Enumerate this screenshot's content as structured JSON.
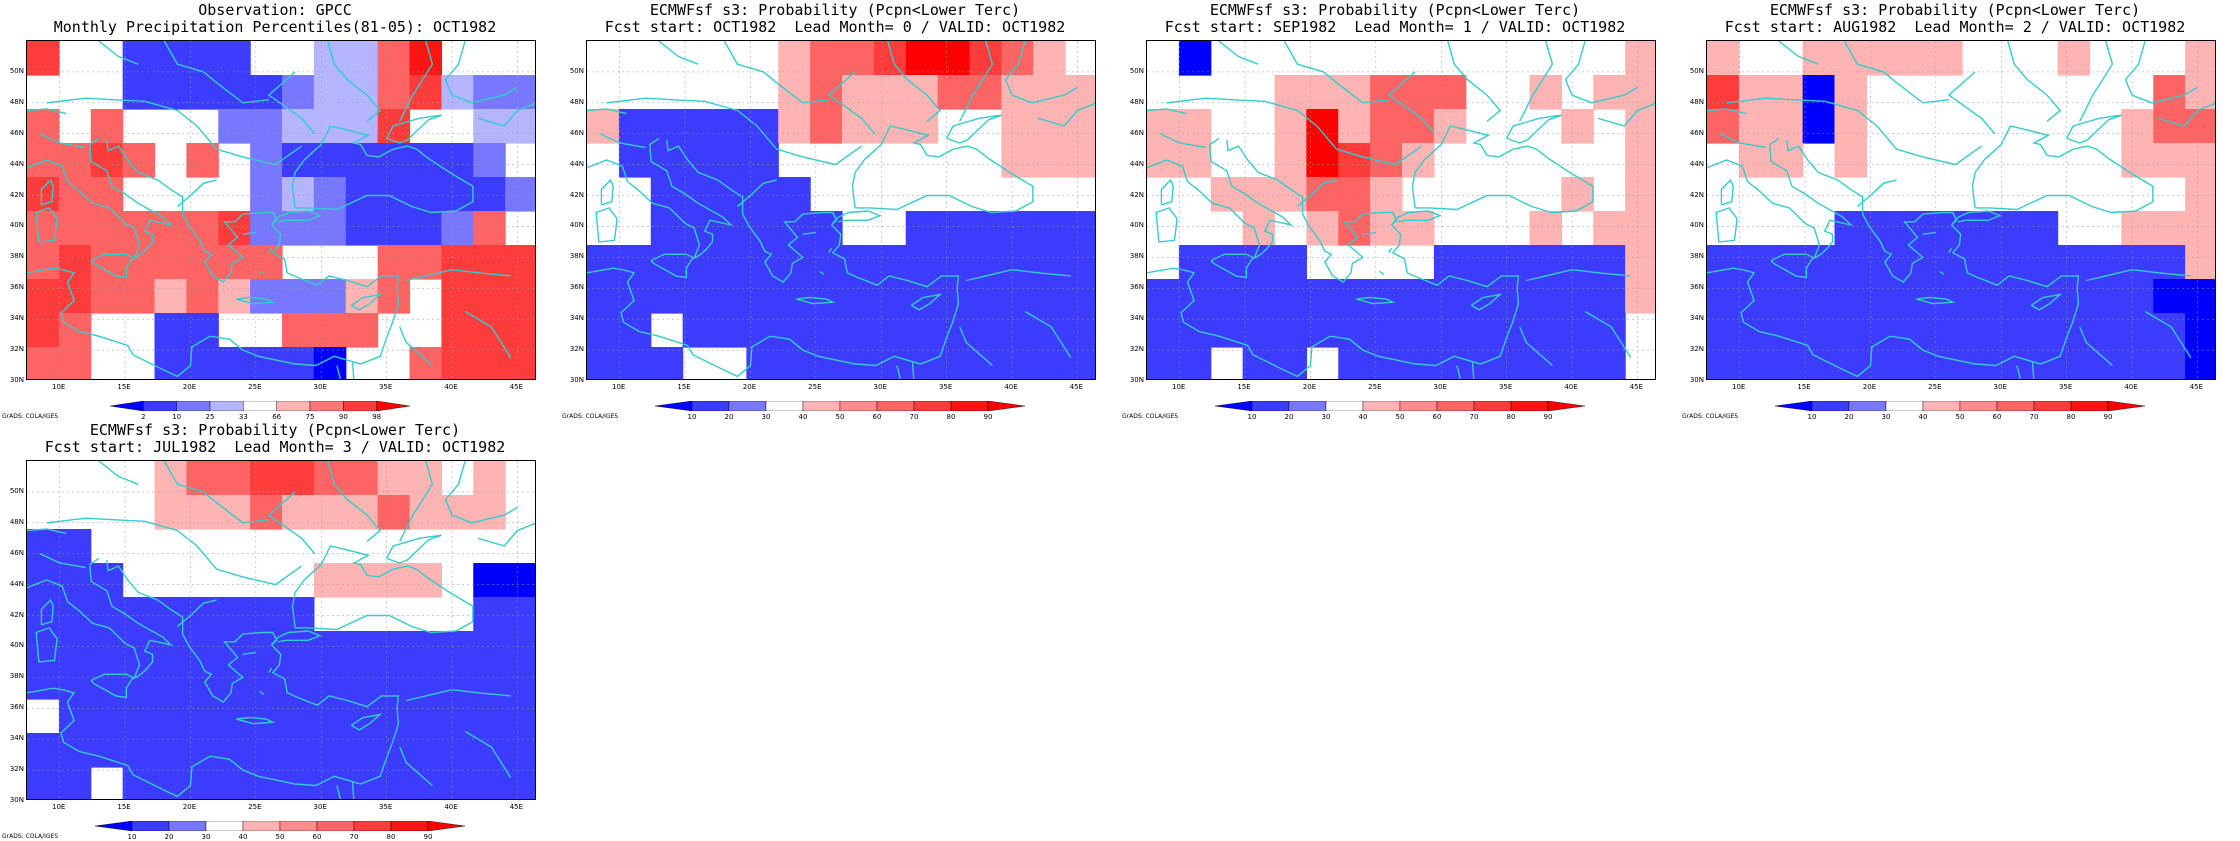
{
  "colors": {
    "coast": "#33cccc",
    "grid": "#999999",
    "frame": "#000000"
  },
  "panels": [
    {
      "title1": "Observation: GPCC",
      "title2": "Monthly Precipitation Percentiles(81-05): OCT1982",
      "colorbar_labels": [
        "2",
        "10",
        "25",
        "33",
        "66",
        "75",
        "90",
        "98"
      ],
      "colorbar_colors": [
        "#0000ff",
        "#3c3cff",
        "#7878ff",
        "#b4b4ff",
        "#ffffff",
        "#ffb4b4",
        "#ff7878",
        "#ff3c3c",
        "#ff0000"
      ],
      "credit": "GrADS: COLA/IGES",
      "lat_labels": [
        "50N",
        "48N",
        "46N",
        "44N",
        "42N",
        "40N",
        "38N",
        "36N",
        "34N",
        "32N",
        "30N"
      ],
      "lon_labels": [
        "10E",
        "15E",
        "20E",
        "25E",
        "30E",
        "35E",
        "40E",
        "45E"
      ]
    },
    {
      "title1": "ECMWFsf s3: Probability (Pcpn<Lower Terc)",
      "title2": "Fcst start: OCT1982  Lead Month= 0 / VALID: OCT1982",
      "colorbar_labels": [
        "10",
        "20",
        "30",
        "40",
        "50",
        "60",
        "70",
        "80",
        "90"
      ],
      "colorbar_colors": [
        "#0000ff",
        "#3c3cff",
        "#7878ff",
        "#ffffff",
        "#ffb4b4",
        "#ff8c8c",
        "#ff6464",
        "#ff3c3c",
        "#ff1414",
        "#ff0000"
      ],
      "credit": "GrADS: COLA/IGES",
      "lat_labels": [
        "50N",
        "48N",
        "46N",
        "44N",
        "42N",
        "40N",
        "38N",
        "36N",
        "34N",
        "32N",
        "30N"
      ],
      "lon_labels": [
        "10E",
        "15E",
        "20E",
        "25E",
        "30E",
        "35E",
        "40E",
        "45E"
      ]
    },
    {
      "title1": "ECMWFsf s3: Probability (Pcpn<Lower Terc)",
      "title2": "Fcst start: SEP1982  Lead Month= 1 / VALID: OCT1982",
      "colorbar_labels": [
        "10",
        "20",
        "30",
        "40",
        "50",
        "60",
        "70",
        "80",
        "90"
      ],
      "colorbar_colors": [
        "#0000ff",
        "#3c3cff",
        "#7878ff",
        "#ffffff",
        "#ffb4b4",
        "#ff8c8c",
        "#ff6464",
        "#ff3c3c",
        "#ff1414",
        "#ff0000"
      ],
      "credit": "GrADS: COLA/IGES",
      "lat_labels": [
        "50N",
        "48N",
        "46N",
        "44N",
        "42N",
        "40N",
        "38N",
        "36N",
        "34N",
        "32N",
        "30N"
      ],
      "lon_labels": [
        "10E",
        "15E",
        "20E",
        "25E",
        "30E",
        "35E",
        "40E",
        "45E"
      ]
    },
    {
      "title1": "ECMWFsf s3: Probability (Pcpn<Lower Terc)",
      "title2": "Fcst start: AUG1982  Lead Month= 2 / VALID: OCT1982",
      "colorbar_labels": [
        "10",
        "20",
        "30",
        "40",
        "50",
        "60",
        "70",
        "80",
        "90"
      ],
      "colorbar_colors": [
        "#0000ff",
        "#3c3cff",
        "#7878ff",
        "#ffffff",
        "#ffb4b4",
        "#ff8c8c",
        "#ff6464",
        "#ff3c3c",
        "#ff1414",
        "#ff0000"
      ],
      "credit": "GrADS: COLA/IGES",
      "lat_labels": [
        "50N",
        "48N",
        "46N",
        "44N",
        "42N",
        "40N",
        "38N",
        "36N",
        "34N",
        "32N",
        "30N"
      ],
      "lon_labels": [
        "10E",
        "15E",
        "20E",
        "25E",
        "30E",
        "35E",
        "40E",
        "45E"
      ]
    },
    {
      "title1": "ECMWFsf s3: Probability (Pcpn<Lower Terc)",
      "title2": "Fcst start: JUL1982  Lead Month= 3 / VALID: OCT1982",
      "colorbar_labels": [
        "10",
        "20",
        "30",
        "40",
        "50",
        "60",
        "70",
        "80",
        "90"
      ],
      "colorbar_colors": [
        "#0000ff",
        "#3c3cff",
        "#7878ff",
        "#ffffff",
        "#ffb4b4",
        "#ff8c8c",
        "#ff6464",
        "#ff3c3c",
        "#ff1414",
        "#ff0000"
      ],
      "credit": "GrADS: COLA/IGES",
      "lat_labels": [
        "50N",
        "48N",
        "46N",
        "44N",
        "42N",
        "40N",
        "38N",
        "36N",
        "34N",
        "32N",
        "30N"
      ],
      "lon_labels": [
        "10E",
        "15E",
        "20E",
        "25E",
        "30E",
        "35E",
        "40E",
        "45E"
      ]
    }
  ]
}
